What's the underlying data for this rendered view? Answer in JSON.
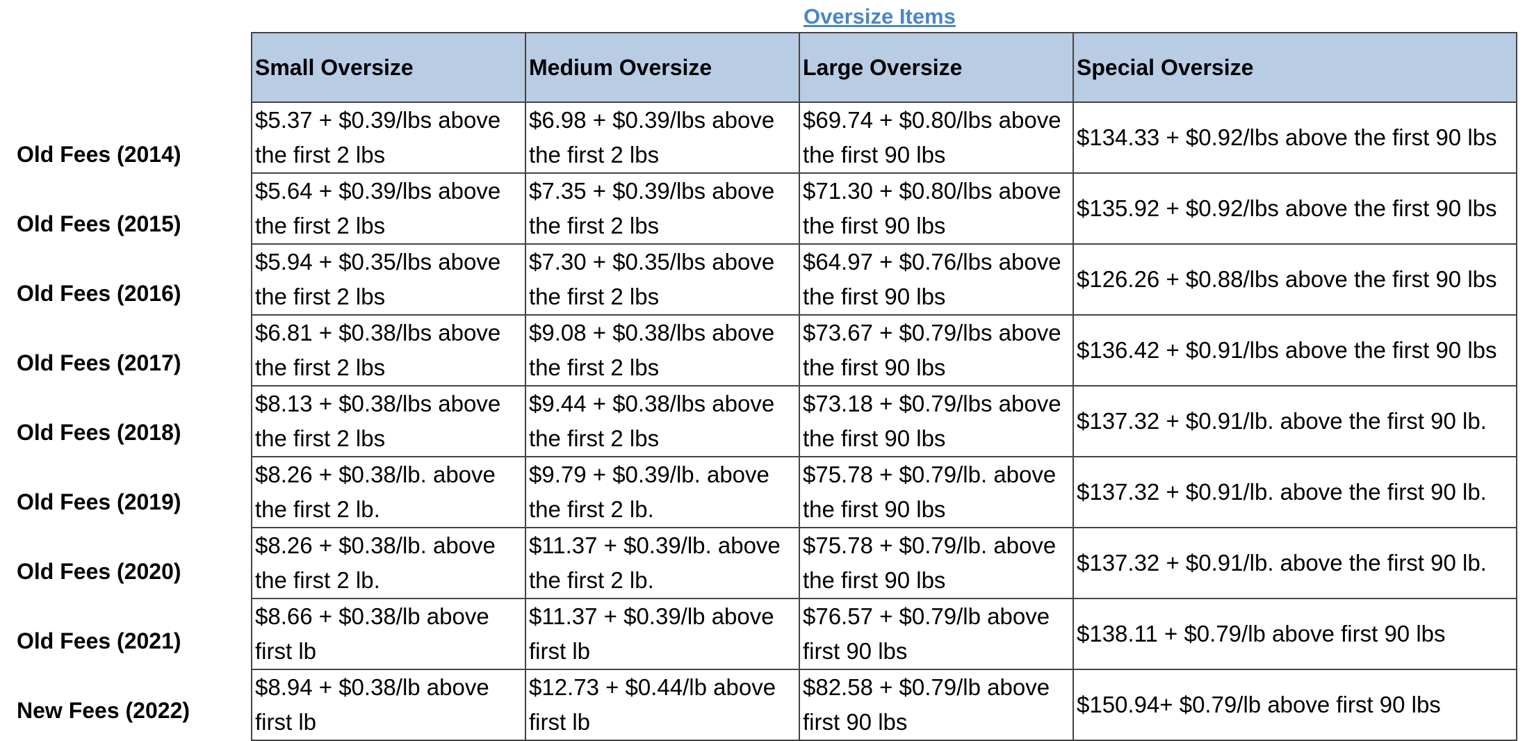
{
  "title": "Oversize Items",
  "headers": [
    "Small Oversize",
    "Medium Oversize",
    "Large Oversize",
    "Special Oversize"
  ],
  "rows": [
    {
      "label": "Old Fees (2014)",
      "small": "$5.37 + $0.39/lbs above the first 2 lbs",
      "medium": "$6.98 + $0.39/lbs above the first 2 lbs",
      "large": "$69.74 + $0.80/lbs above the first 90 lbs",
      "special": "$134.33 + $0.92/lbs above the first 90 lbs"
    },
    {
      "label": "Old Fees (2015)",
      "small": "$5.64 + $0.39/lbs above the first 2 lbs",
      "medium": "$7.35 + $0.39/lbs above the first 2 lbs",
      "large": "$71.30 + $0.80/lbs above the first 90 lbs",
      "special": "$135.92 + $0.92/lbs above the first 90 lbs"
    },
    {
      "label": "Old Fees (2016)",
      "small": "$5.94 + $0.35/lbs above the first 2 lbs",
      "medium": "$7.30 + $0.35/lbs above the first 2 lbs",
      "large": "$64.97 + $0.76/lbs above the first 90 lbs",
      "special": "$126.26 + $0.88/lbs above the first 90 lbs"
    },
    {
      "label": "Old Fees (2017)",
      "small": "$6.81 + $0.38/lbs above the first 2 lbs",
      "medium": "$9.08 + $0.38/lbs above the first 2 lbs",
      "large": "$73.67 + $0.79/lbs above the first 90 lbs",
      "special": "$136.42 + $0.91/lbs above the first 90 lbs"
    },
    {
      "label": "Old Fees (2018)",
      "small": "$8.13 + $0.38/lbs above the first 2 lbs",
      "medium": "$9.44 + $0.38/lbs above the first 2 lbs",
      "large": "$73.18  + $0.79/lbs above the first 90 lbs",
      "special": "$137.32 + $0.91/lb. above the first 90 lb."
    },
    {
      "label": "Old Fees (2019)",
      "small": "$8.26 + $0.38/lb. above the first 2 lb.",
      "medium": "$9.79 + $0.39/lb. above the first 2 lb.",
      "large": "$75.78 +  $0.79/lb. above the first 90 lbs",
      "special": "$137.32 + $0.91/lb. above the first 90 lb."
    },
    {
      "label": "Old Fees (2020)",
      "small": "$8.26 + $0.38/lb. above the first 2 lb.",
      "medium": "$11.37 + $0.39/lb. above the first 2 lb.",
      "large": "$75.78 +  $0.79/lb. above the first 90 lbs",
      "special": "$137.32 + $0.91/lb. above the first 90 lb."
    },
    {
      "label": "Old Fees (2021)",
      "small": "$8.66 + $0.38/lb above first lb",
      "medium": "$11.37 + $0.39/lb above first lb",
      "large": "$76.57 + $0.79/lb above first 90 lbs",
      "special": "$138.11 + $0.79/lb above first 90 lbs"
    },
    {
      "label": "New Fees (2022)",
      "small": "$8.94 + $0.38/lb above first lb",
      "medium": "$12.73 + $0.44/lb above first lb",
      "large": "$82.58 + $0.79/lb above first 90 lbs",
      "special": "$150.94+ $0.79/lb above first 90 lbs"
    }
  ],
  "colors": {
    "title": "#4a86c8",
    "header_bg": "#b8cce4",
    "border": "#444444"
  }
}
